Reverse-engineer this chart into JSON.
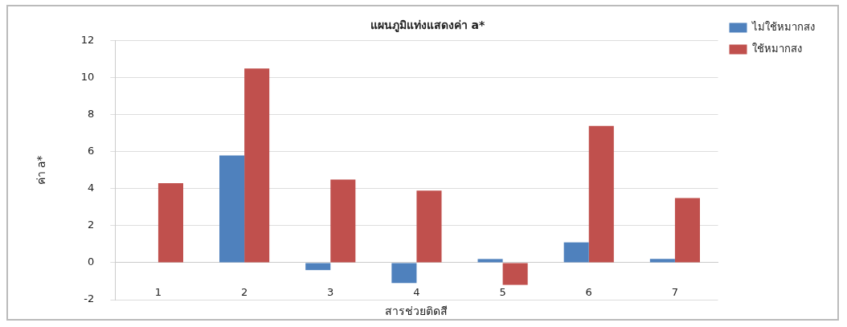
{
  "chart_data": {
    "type": "bar",
    "title": "แผนภูมิแท่งแสดงค่า a*",
    "xlabel": "สารช่วยติดสี",
    "ylabel": "ค่า a*",
    "categories": [
      "1",
      "2",
      "3",
      "4",
      "5",
      "6",
      "7"
    ],
    "series": [
      {
        "name": "ไม่ใช้หมากสง",
        "color": "#4f81bd",
        "values": [
          0,
          5.8,
          -0.4,
          -1.1,
          0.2,
          1.1,
          0.2
        ]
      },
      {
        "name": "ใช้หมากสง",
        "color": "#c0504d",
        "values": [
          4.3,
          10.5,
          4.5,
          3.9,
          -1.2,
          7.4,
          3.5
        ]
      }
    ],
    "ylim": [
      -2,
      12
    ],
    "yticks": [
      -2,
      0,
      2,
      4,
      6,
      8,
      10,
      12
    ],
    "grid": "y",
    "legend": "top right"
  }
}
